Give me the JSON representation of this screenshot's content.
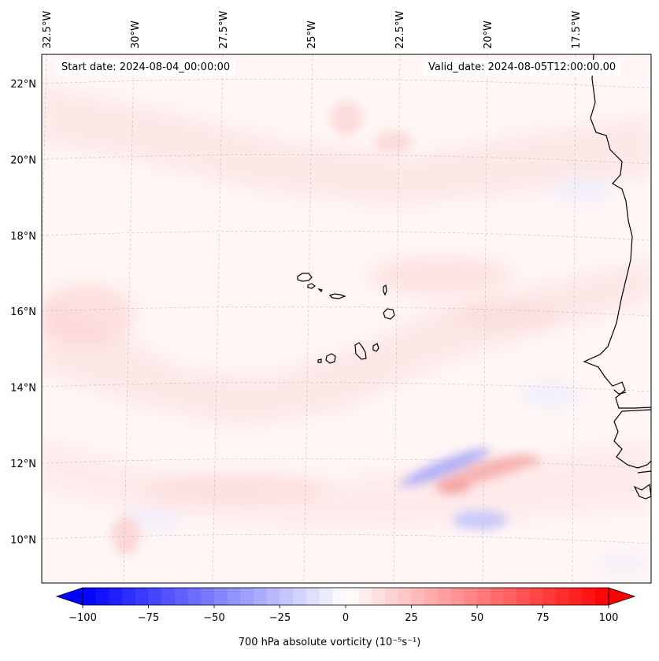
{
  "map": {
    "extent_lon": [
      -33.0,
      -15.5
    ],
    "extent_lat": [
      8.9,
      22.8
    ],
    "lon_ticks": [
      {
        "value": -32.5,
        "label": "32.5°W"
      },
      {
        "value": -30.0,
        "label": "30°W"
      },
      {
        "value": -27.5,
        "label": "27.5°W"
      },
      {
        "value": -25.0,
        "label": "25°W"
      },
      {
        "value": -22.5,
        "label": "22.5°W"
      },
      {
        "value": -20.0,
        "label": "20°W"
      },
      {
        "value": -17.5,
        "label": "17.5°W"
      }
    ],
    "lat_ticks": [
      {
        "value": 22,
        "label": "22°N"
      },
      {
        "value": 20,
        "label": "20°N"
      },
      {
        "value": 18,
        "label": "18°N"
      },
      {
        "value": 16,
        "label": "16°N"
      },
      {
        "value": 14,
        "label": "14°N"
      },
      {
        "value": 12,
        "label": "12°N"
      },
      {
        "value": 10,
        "label": "10°N"
      }
    ],
    "start_date": "Start date: 2024-08-04_00:00:00",
    "valid_date": "Valid_date: 2024-08-05T12:00:00.00",
    "features": [
      {
        "name": "Cabo Verde islands",
        "type": "island group"
      },
      {
        "name": "West African coastline",
        "type": "coastline"
      }
    ],
    "field_colors": {
      "weak_positive": "#fde8e8",
      "moderate_positive": "#fbd2d2",
      "strong_positive": "#f5a3a3",
      "weak_negative": "#eeeefe",
      "moderate_negative": "#c9c9fb",
      "strong_negative": "#a9a9f6"
    }
  },
  "colorbar": {
    "min": -100,
    "max": 100,
    "ticks": [
      {
        "value": -100,
        "label": "−100"
      },
      {
        "value": -75,
        "label": "−75"
      },
      {
        "value": -50,
        "label": "−50"
      },
      {
        "value": -25,
        "label": "−25"
      },
      {
        "value": 0,
        "label": "0"
      },
      {
        "value": 25,
        "label": "25"
      },
      {
        "value": 50,
        "label": "50"
      },
      {
        "value": 75,
        "label": "75"
      },
      {
        "value": 100,
        "label": "100"
      }
    ],
    "label": "700 hPa absolute vorticity (10⁻⁵s⁻¹)",
    "colormap": "bwr",
    "low_color": "#0000ff",
    "mid_color": "#ffffff",
    "high_color": "#ff0000"
  }
}
